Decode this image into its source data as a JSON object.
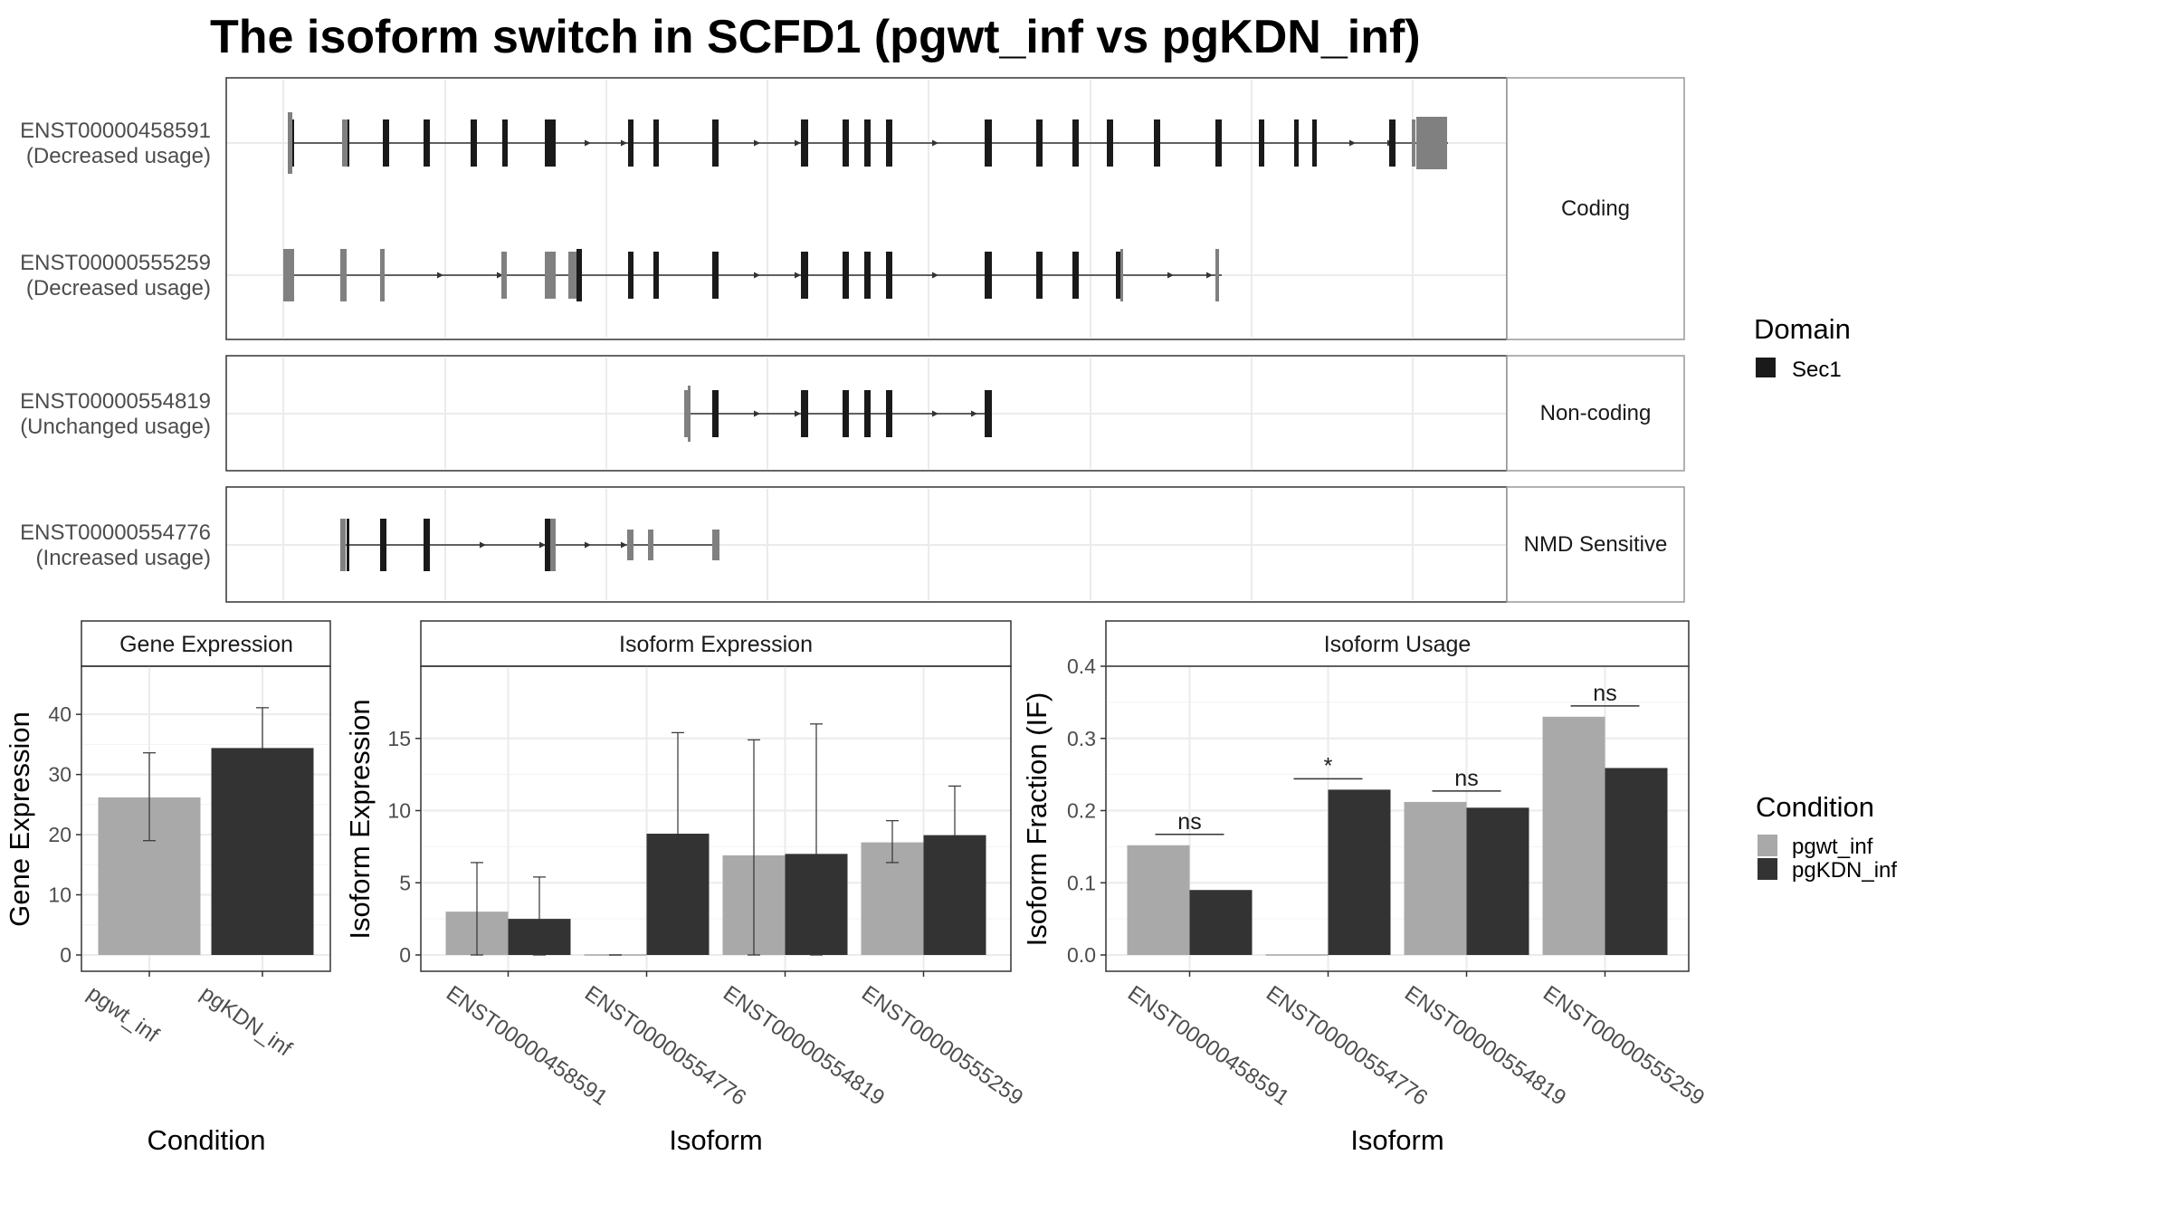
{
  "title": "The isoform switch in SCFD1 (pgwt_inf vs pgKDN_inf)",
  "colors": {
    "domain": "#1a1a1a",
    "utr": "#808080",
    "pgwt_inf": "#a9a9a9",
    "pgKDN_inf": "#333333",
    "panel_border": "#333333",
    "strip_border": "#999999",
    "grid": "#ebebeb"
  },
  "structure_panel": {
    "facets": [
      {
        "label": "Coding",
        "transcripts": [
          {
            "id": "ENST00000458591",
            "usage": "(Decreased usage)"
          },
          {
            "id": "ENST00000555259",
            "usage": "(Decreased usage)"
          }
        ]
      },
      {
        "label": "Non-coding",
        "transcripts": [
          {
            "id": "ENST00000554819",
            "usage": "(Unchanged usage)"
          }
        ]
      },
      {
        "label": "NMD Sensitive",
        "transcripts": [
          {
            "id": "ENST00000554776",
            "usage": "(Increased usage)"
          }
        ]
      }
    ],
    "legend": {
      "title": "Domain",
      "items": [
        "Sec1"
      ]
    }
  },
  "chart_data": [
    {
      "type": "bar",
      "strip": "Gene Expression",
      "xlabel": "Condition",
      "ylabel": "Gene Expression",
      "categories": [
        "pgwt_inf",
        "pgKDN_inf"
      ],
      "values": [
        26.2,
        34.4
      ],
      "error_low": [
        19.0,
        27.6
      ],
      "error_high": [
        33.6,
        41.1
      ],
      "ylim": [
        0,
        48
      ],
      "yticks": [
        "0",
        "10",
        "20",
        "30",
        "40"
      ],
      "ytick_values": [
        0,
        10,
        20,
        30,
        40
      ],
      "grid": true
    },
    {
      "type": "bar",
      "strip": "Isoform Expression",
      "xlabel": "Isoform",
      "ylabel": "Isoform Expression",
      "categories": [
        "ENST00000458591",
        "ENST00000554776",
        "ENST00000554819",
        "ENST00000555259"
      ],
      "ylim": [
        0,
        20
      ],
      "yticks": [
        "0",
        "5",
        "10",
        "15"
      ],
      "ytick_values": [
        0,
        5,
        10,
        15
      ],
      "grid": true,
      "series": [
        {
          "name": "pgwt_inf",
          "values": [
            3.0,
            0.0,
            6.9,
            7.8
          ],
          "error_low": [
            0.0,
            0.0,
            0.0,
            6.4
          ],
          "error_high": [
            6.4,
            0.0,
            14.9,
            9.3
          ]
        },
        {
          "name": "pgKDN_inf",
          "values": [
            2.5,
            8.4,
            7.0,
            8.3
          ],
          "error_low": [
            0.0,
            1.4,
            0.0,
            4.8
          ],
          "error_high": [
            5.4,
            15.4,
            16.0,
            11.7
          ]
        }
      ]
    },
    {
      "type": "bar",
      "strip": "Isoform Usage",
      "xlabel": "Isoform",
      "ylabel": "Isoform Fraction (IF)",
      "categories": [
        "ENST00000458591",
        "ENST00000554776",
        "ENST00000554819",
        "ENST00000555259"
      ],
      "ylim": [
        0,
        0.4
      ],
      "yticks": [
        "0.0",
        "0.1",
        "0.2",
        "0.3",
        "0.4"
      ],
      "ytick_values": [
        0,
        0.1,
        0.2,
        0.3,
        0.4
      ],
      "grid": true,
      "series": [
        {
          "name": "pgwt_inf",
          "values": [
            0.152,
            0.0,
            0.212,
            0.33
          ]
        },
        {
          "name": "pgKDN_inf",
          "values": [
            0.09,
            0.229,
            0.204,
            0.259
          ]
        }
      ],
      "significance": [
        "ns",
        "*",
        "ns",
        "ns"
      ]
    }
  ],
  "condition_legend": {
    "title": "Condition",
    "items": [
      "pgwt_inf",
      "pgKDN_inf"
    ]
  }
}
